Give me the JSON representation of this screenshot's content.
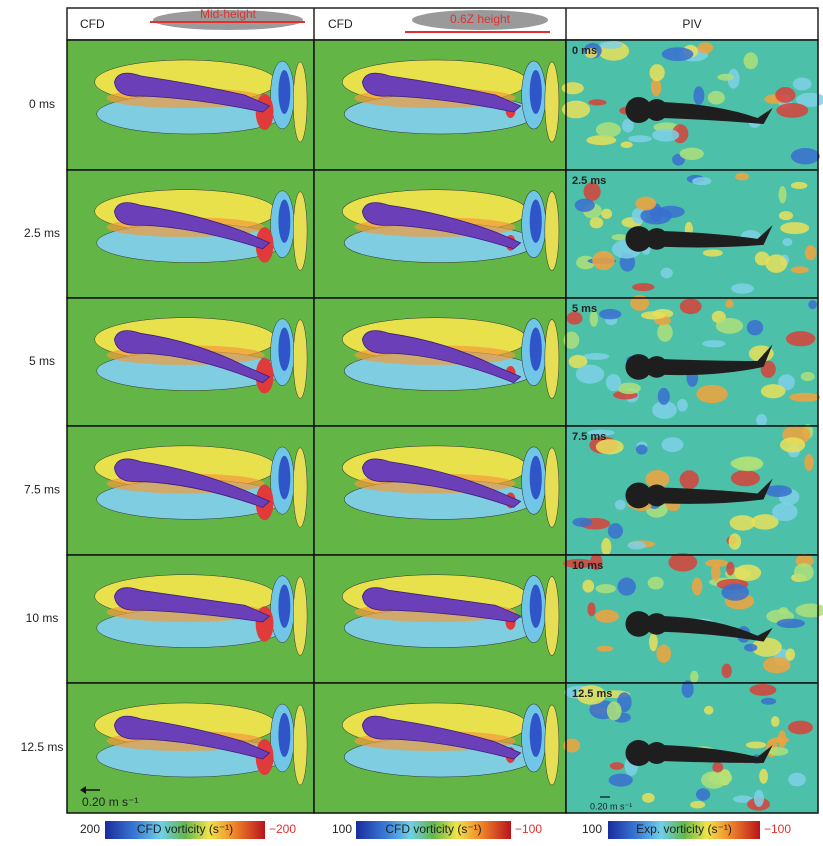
{
  "header": {
    "columns": [
      {
        "label": "CFD",
        "inset_label": "Mid-height"
      },
      {
        "label": "CFD",
        "inset_label": "0.6Z height"
      },
      {
        "label": "PIV"
      }
    ]
  },
  "rows": [
    {
      "label": "0 ms",
      "piv_label": "0 ms"
    },
    {
      "label": "2.5 ms",
      "piv_label": "2.5 ms"
    },
    {
      "label": "5 ms",
      "piv_label": "5 ms"
    },
    {
      "label": "7.5 ms",
      "piv_label": "7.5 ms"
    },
    {
      "label": "10 ms",
      "piv_label": "10 ms"
    },
    {
      "label": "12.5 ms",
      "piv_label": "12.5 ms"
    }
  ],
  "scale_bars": [
    {
      "label": "0.20 m s⁻¹"
    },
    {
      "label": "0.20 m s⁻¹"
    }
  ],
  "colorbars": [
    {
      "max": "200",
      "title": "CFD vorticity (s⁻¹)",
      "min": "−200"
    },
    {
      "max": "100",
      "title": "CFD vorticity (s⁻¹)",
      "min": "−100"
    },
    {
      "max": "100",
      "title": "Exp. vorticity (s⁻¹)",
      "min": "−100"
    }
  ]
}
